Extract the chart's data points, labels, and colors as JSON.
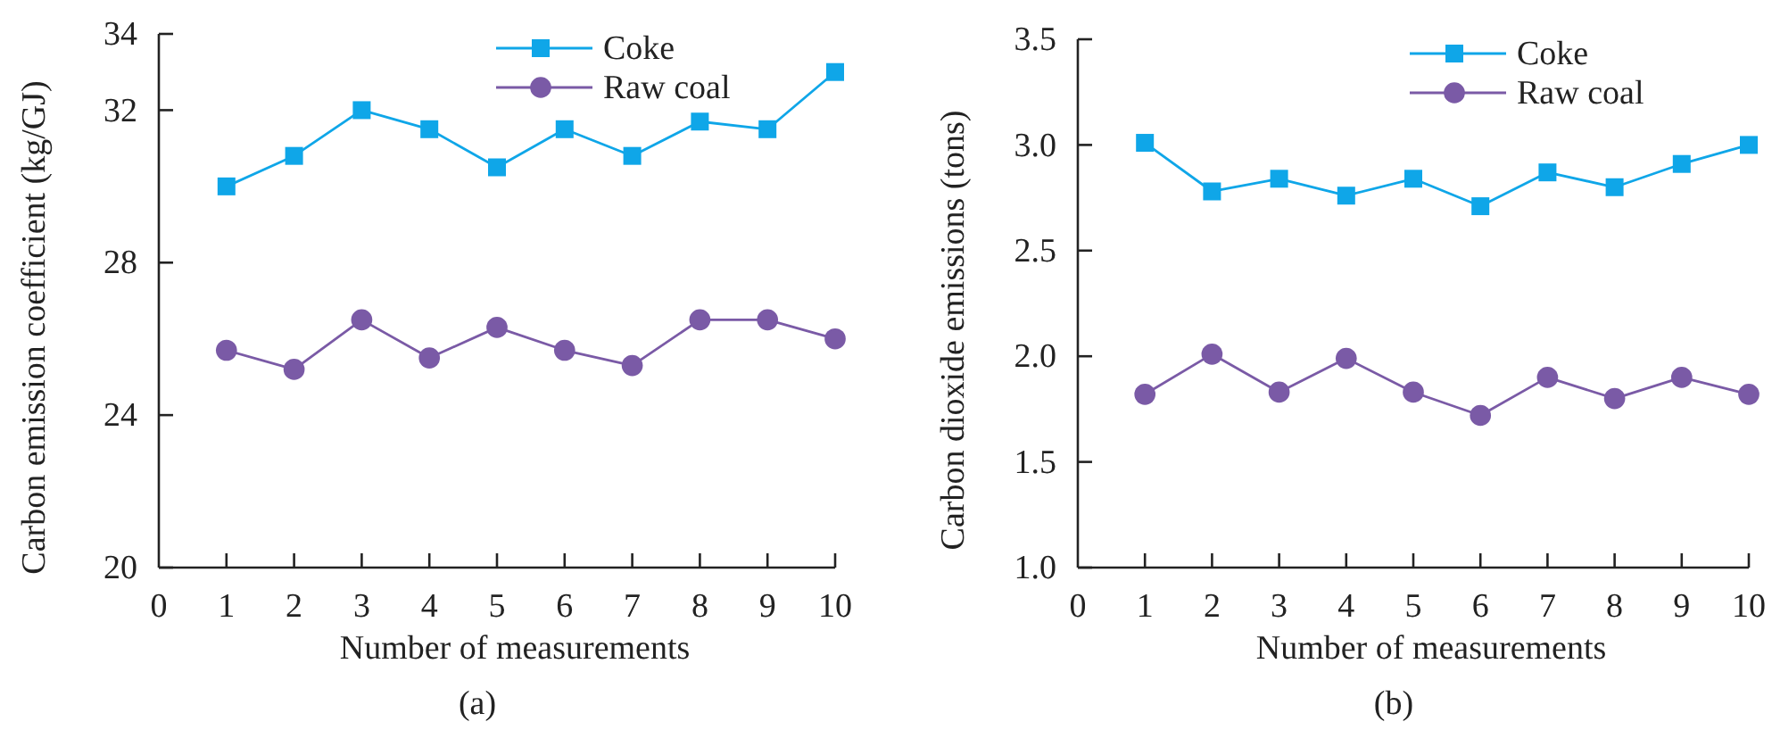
{
  "chart_data": [
    {
      "type": "line",
      "xlabel": "Number of measurements",
      "ylabel": "Carbon emission coefficient (kg/GJ)",
      "annotations": [
        "(a)"
      ],
      "x": [
        1,
        2,
        3,
        4,
        5,
        6,
        7,
        8,
        9,
        10
      ],
      "xlim": [
        0,
        10
      ],
      "xticks": [
        0,
        1,
        2,
        3,
        4,
        5,
        6,
        7,
        8,
        9,
        10
      ],
      "ylim": [
        20,
        34
      ],
      "yticks": [
        20,
        24,
        28,
        32,
        34
      ],
      "legend": "top right",
      "grid": false,
      "series": [
        {
          "name": "Coke",
          "color": "#0fa6e8",
          "marker": "square",
          "values": [
            30,
            30.8,
            32,
            31.5,
            30.5,
            31.5,
            30.8,
            31.7,
            31.5,
            33
          ]
        },
        {
          "name": "Raw coal",
          "color": "#7a5aa6",
          "marker": "circle",
          "values": [
            25.7,
            25.2,
            26.5,
            25.5,
            26.3,
            25.7,
            25.3,
            26.5,
            26.5,
            26.0
          ]
        }
      ]
    },
    {
      "type": "line",
      "xlabel": "Number of measurements",
      "ylabel": "Carbon dioxide emissions (tons)",
      "annotations": [
        "(b)"
      ],
      "x": [
        1,
        2,
        3,
        4,
        5,
        6,
        7,
        8,
        9,
        10
      ],
      "xlim": [
        0,
        10
      ],
      "xticks": [
        0,
        1,
        2,
        3,
        4,
        5,
        6,
        7,
        8,
        9,
        10
      ],
      "ylim": [
        1.0,
        3.5
      ],
      "yticks": [
        {
          "value": 1.0,
          "label": "1.0"
        },
        1.5,
        {
          "value": 2.0,
          "label": "2.0"
        },
        2.5,
        {
          "value": 3.0,
          "label": "3.0"
        },
        3.5
      ],
      "legend": "top right",
      "grid": false,
      "series": [
        {
          "name": "Coke",
          "color": "#0fa6e8",
          "marker": "square",
          "values": [
            3.01,
            2.78,
            2.84,
            2.76,
            2.84,
            2.71,
            2.87,
            2.8,
            2.91,
            3.0
          ]
        },
        {
          "name": "Raw coal",
          "color": "#7a5aa6",
          "marker": "circle",
          "values": [
            1.82,
            2.01,
            1.83,
            1.99,
            1.83,
            1.72,
            1.9,
            1.8,
            1.9,
            1.82
          ]
        }
      ]
    }
  ]
}
